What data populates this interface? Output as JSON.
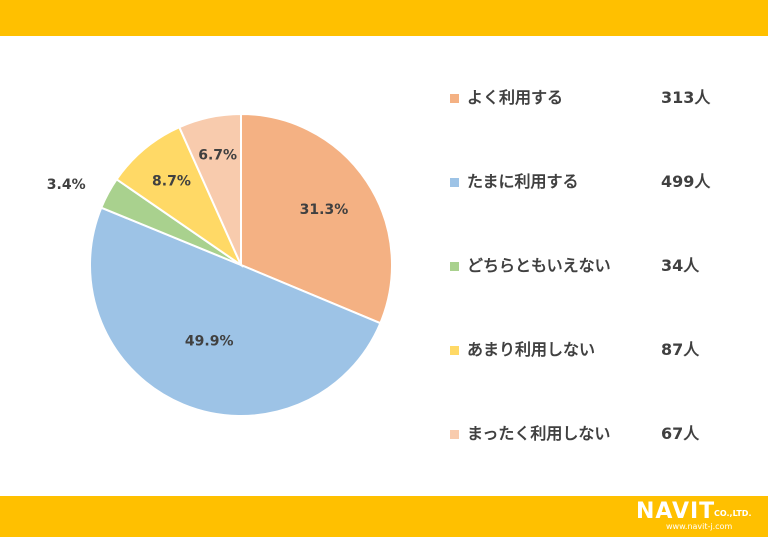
{
  "theme": {
    "band_color": "#FFC000"
  },
  "chart_data": {
    "type": "pie",
    "title": "",
    "start": "top, clockwise",
    "slices": [
      {
        "label": "よく利用する",
        "count_label": "313人",
        "count": 313,
        "percent": 31.3,
        "percent_label": "31.3%",
        "color": "#F4B183"
      },
      {
        "label": "たまに利用する",
        "count_label": "499人",
        "count": 499,
        "percent": 49.9,
        "percent_label": "49.9%",
        "color": "#9DC3E6"
      },
      {
        "label": "どちらともいえない",
        "count_label": "34人",
        "count": 34,
        "percent": 3.4,
        "percent_label": "3.4%",
        "color": "#A9D18E"
      },
      {
        "label": "あまり利用しない",
        "count_label": "87人",
        "count": 87,
        "percent": 8.7,
        "percent_label": "8.7%",
        "color": "#FFD966"
      },
      {
        "label": "まったく利用しない",
        "count_label": "67人",
        "count": 67,
        "percent": 6.7,
        "percent_label": "6.7%",
        "color": "#F8CBAD"
      }
    ],
    "legend_position": "right"
  },
  "logo": {
    "name": "NAVIT",
    "suffix": "CO.,LTD.",
    "url": "www.navit-j.com"
  }
}
